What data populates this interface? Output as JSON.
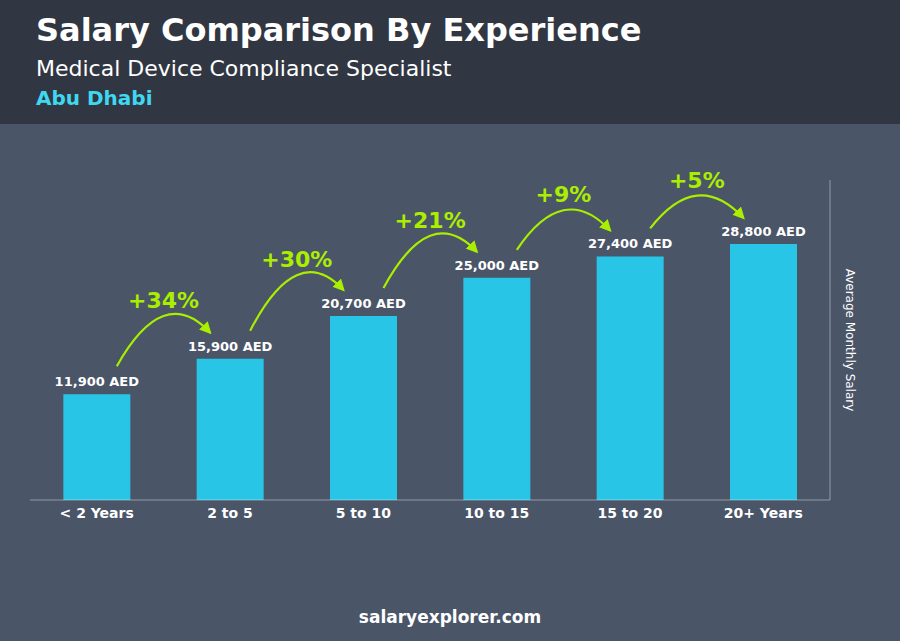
{
  "chart_data": {
    "type": "bar",
    "title": "Salary Comparison By Experience",
    "subtitle": "Medical Device Compliance Specialist",
    "ylabel": "Average Monthly Salary",
    "categories": [
      "< 2 Years",
      "2 to 5",
      "5 to 10",
      "10 to 15",
      "15 to 20",
      "20+ Years"
    ],
    "values": [
      11900,
      15900,
      20700,
      25000,
      27400,
      28800
    ],
    "value_labels": [
      "11,900 AED",
      "15,900 AED",
      "20,700 AED",
      "25,000 AED",
      "27,400 AED",
      "28,800 AED"
    ],
    "data_labels": true,
    "color": "#29c5e6",
    "ylim": [
      0,
      36000
    ],
    "yticks": [],
    "tick_labels": "x",
    "grid": false,
    "annotations": [
      {
        "text": "Abu Dhabi",
        "color": "#40d8f0"
      },
      {
        "text": "+34%",
        "from": "< 2 Years",
        "to": "2 to 5",
        "color": "#aaee00"
      },
      {
        "text": "+30%",
        "from": "2 to 5",
        "to": "5 to 10",
        "color": "#aaee00"
      },
      {
        "text": "+21%",
        "from": "5 to 10",
        "to": "10 to 15",
        "color": "#aaee00"
      },
      {
        "text": "+9%",
        "from": "10 to 15",
        "to": "15 to 20",
        "color": "#aaee00"
      },
      {
        "text": "+5%",
        "from": "15 to 20",
        "to": "20+ Years",
        "color": "#aaee00"
      },
      {
        "text": "salaryexplorer.com"
      }
    ]
  }
}
